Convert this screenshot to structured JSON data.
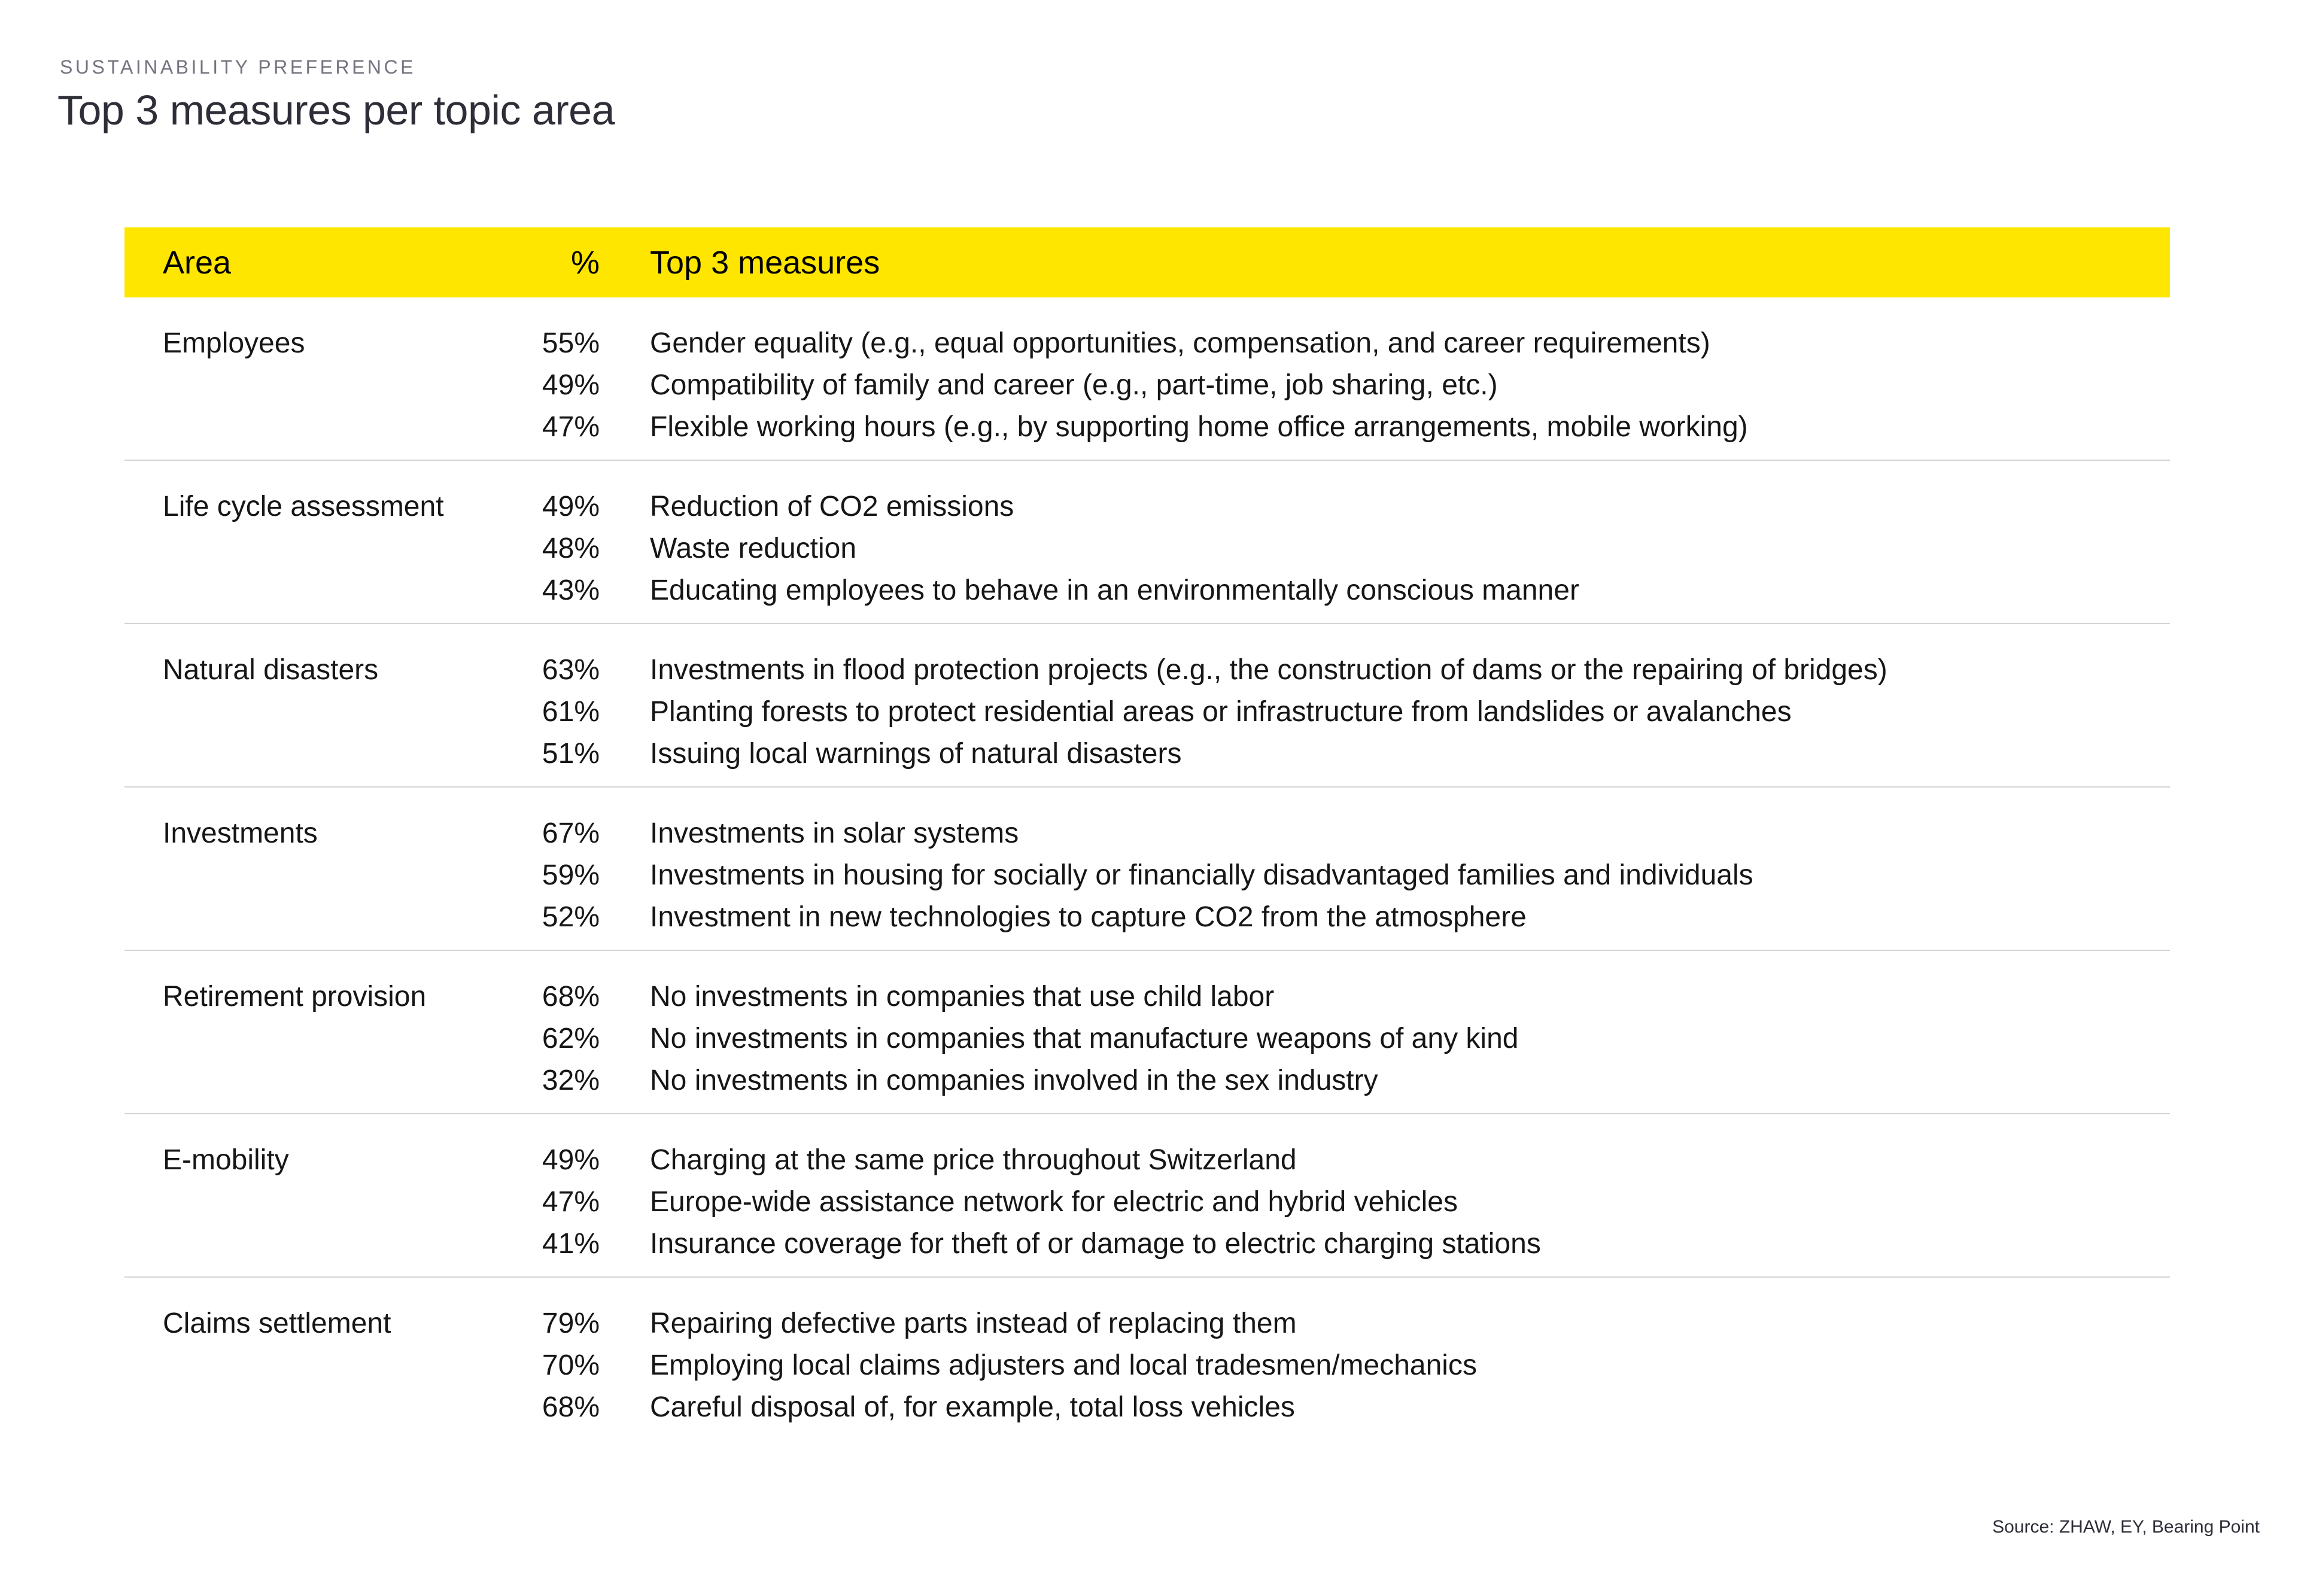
{
  "page": {
    "kicker": "SUSTAINABILITY PREFERENCE",
    "title": "Top 3 measures per topic area",
    "source": "Source: ZHAW, EY, Bearing Point"
  },
  "colors": {
    "header_yellow": "#FFE600",
    "title_text": "#2E2E38",
    "kicker_text": "#747480",
    "body_text": "#161616",
    "divider": "#D4D4D4"
  },
  "table": {
    "headers": {
      "area": "Area",
      "percent": "%",
      "measures": "Top 3 measures"
    },
    "rows": [
      {
        "area": "Employees",
        "items": [
          {
            "percent": "55%",
            "measure": "Gender equality (e.g., equal opportunities, compensation, and career requirements)"
          },
          {
            "percent": "49%",
            "measure": "Compatibility of family and career (e.g., part-time, job sharing, etc.)"
          },
          {
            "percent": "47%",
            "measure": "Flexible working hours (e.g., by supporting home office arrangements, mobile working)"
          }
        ]
      },
      {
        "area": "Life cycle assessment",
        "items": [
          {
            "percent": "49%",
            "measure": "Reduction of CO2 emissions"
          },
          {
            "percent": "48%",
            "measure": "Waste reduction"
          },
          {
            "percent": "43%",
            "measure": "Educating employees to behave in an environmentally conscious manner"
          }
        ]
      },
      {
        "area": "Natural disasters",
        "items": [
          {
            "percent": "63%",
            "measure": "Investments in flood protection projects (e.g., the construction of dams or the repairing of bridges)"
          },
          {
            "percent": "61%",
            "measure": "Planting forests to protect residential areas or infrastructure from landslides or avalanches"
          },
          {
            "percent": "51%",
            "measure": "Issuing local warnings of natural disasters"
          }
        ]
      },
      {
        "area": "Investments",
        "items": [
          {
            "percent": "67%",
            "measure": "Investments in solar systems"
          },
          {
            "percent": "59%",
            "measure": "Investments in housing for socially or financially disadvantaged families and individuals"
          },
          {
            "percent": "52%",
            "measure": "Investment in new technologies to capture CO2 from the atmosphere"
          }
        ]
      },
      {
        "area": "Retirement provision",
        "items": [
          {
            "percent": "68%",
            "measure": "No investments in companies that use child labor"
          },
          {
            "percent": "62%",
            "measure": "No investments in companies that manufacture weapons of any kind"
          },
          {
            "percent": "32%",
            "measure": "No investments in companies involved in the sex industry"
          }
        ]
      },
      {
        "area": "E-mobility",
        "items": [
          {
            "percent": "49%",
            "measure": "Charging at the same price throughout Switzerland"
          },
          {
            "percent": "47%",
            "measure": "Europe-wide assistance network for electric and hybrid vehicles"
          },
          {
            "percent": "41%",
            "measure": "Insurance coverage for theft of or damage to electric charging stations"
          }
        ]
      },
      {
        "area": "Claims settlement",
        "items": [
          {
            "percent": "79%",
            "measure": "Repairing defective parts instead of replacing them"
          },
          {
            "percent": "70%",
            "measure": "Employing local claims adjusters and local tradesmen/mechanics"
          },
          {
            "percent": "68%",
            "measure": "Careful disposal of, for example, total loss vehicles"
          }
        ]
      }
    ]
  },
  "chart_data": {
    "type": "table",
    "title": "Top 3 measures per topic area",
    "columns": [
      "Area",
      "%",
      "Top 3 measures"
    ],
    "rows": [
      [
        "Employees",
        "55%",
        "Gender equality (e.g., equal opportunities, compensation, and career requirements)"
      ],
      [
        "Employees",
        "49%",
        "Compatibility of family and career (e.g., part-time, job sharing, etc.)"
      ],
      [
        "Employees",
        "47%",
        "Flexible working hours (e.g., by supporting home office arrangements, mobile working)"
      ],
      [
        "Life cycle assessment",
        "49%",
        "Reduction of CO2 emissions"
      ],
      [
        "Life cycle assessment",
        "48%",
        "Waste reduction"
      ],
      [
        "Life cycle assessment",
        "43%",
        "Educating employees to behave in an environmentally conscious manner"
      ],
      [
        "Natural disasters",
        "63%",
        "Investments in flood protection projects (e.g., the construction of dams or the repairing of bridges)"
      ],
      [
        "Natural disasters",
        "61%",
        "Planting forests to protect residential areas or infrastructure from landslides or avalanches"
      ],
      [
        "Natural disasters",
        "51%",
        "Issuing local warnings of natural disasters"
      ],
      [
        "Investments",
        "67%",
        "Investments in solar systems"
      ],
      [
        "Investments",
        "59%",
        "Investments in housing for socially or financially disadvantaged families and individuals"
      ],
      [
        "Investments",
        "52%",
        "Investment in new technologies to capture CO2 from the atmosphere"
      ],
      [
        "Retirement provision",
        "68%",
        "No investments in companies that use child labor"
      ],
      [
        "Retirement provision",
        "62%",
        "No investments in companies that manufacture weapons of any kind"
      ],
      [
        "Retirement provision",
        "32%",
        "No investments in companies involved in the sex industry"
      ],
      [
        "E-mobility",
        "49%",
        "Charging at the same price throughout Switzerland"
      ],
      [
        "E-mobility",
        "47%",
        "Europe-wide assistance network for electric and hybrid vehicles"
      ],
      [
        "E-mobility",
        "41%",
        "Insurance coverage for theft of or damage to electric charging stations"
      ],
      [
        "Claims settlement",
        "79%",
        "Repairing defective parts instead of replacing them"
      ],
      [
        "Claims settlement",
        "70%",
        "Employing local claims adjusters and local tradesmen/mechanics"
      ],
      [
        "Claims settlement",
        "68%",
        "Careful disposal of, for example, total loss vehicles"
      ]
    ],
    "source": "Source: ZHAW, EY, Bearing Point"
  }
}
